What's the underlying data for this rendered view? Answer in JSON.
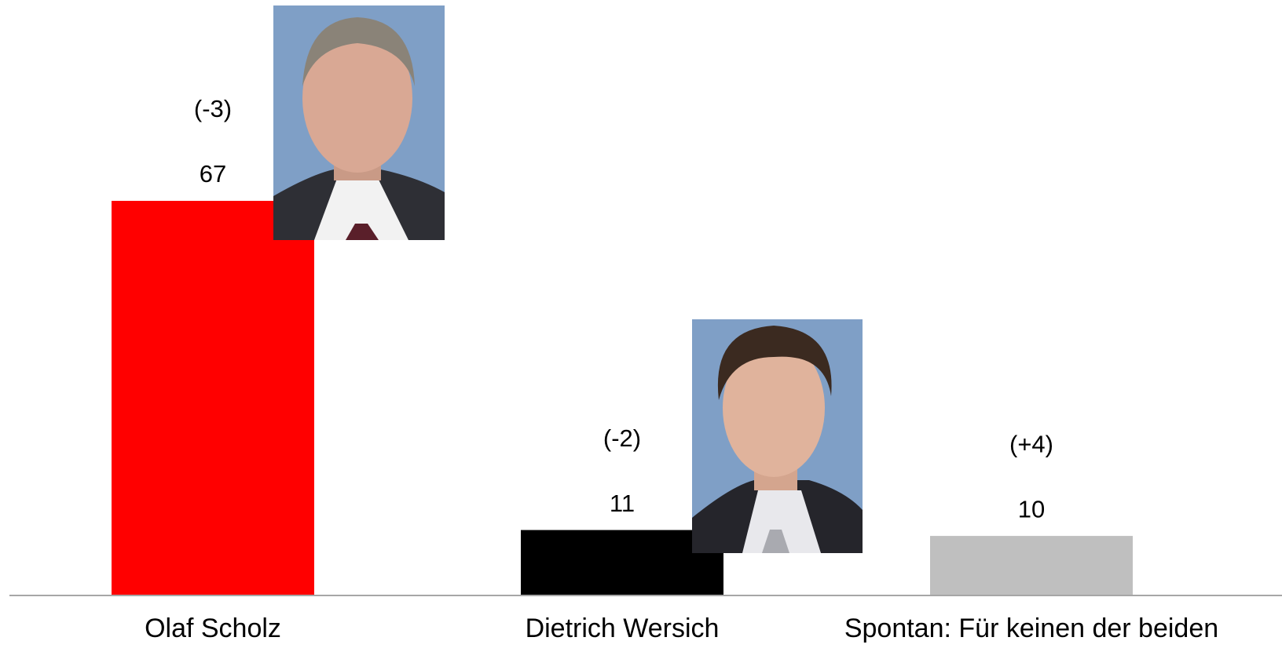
{
  "chart_data": {
    "type": "bar",
    "categories": [
      "Olaf Scholz",
      "Dietrich Wersich",
      "Spontan: Für keinen der beiden"
    ],
    "values": [
      67,
      11,
      10
    ],
    "changes": [
      "(-3)",
      "(-2)",
      "(+4)"
    ],
    "colors": [
      "#ff0000",
      "#000000",
      "#bfbfbf"
    ]
  }
}
